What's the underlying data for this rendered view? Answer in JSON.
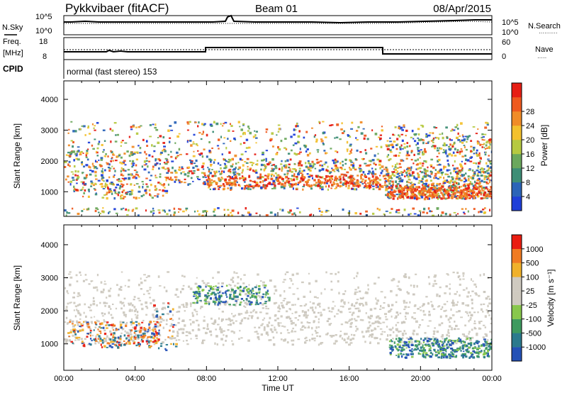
{
  "header": {
    "site": "Pykkvibaer (fitACF)",
    "beam": "Beam 01",
    "date": "08/Apr/2015"
  },
  "status_panels": {
    "nsky_label": "N.Sky",
    "nsky_ticks": [
      "10^5",
      "10^0"
    ],
    "nsearch_label": "N.Search",
    "nsearch_legend": "··········",
    "freq_label_1": "Freq.",
    "freq_label_2": "[MHz]",
    "freq_ticks": [
      "18",
      "8"
    ],
    "nave_label": "Nave",
    "nave_legend": "·····",
    "nave_ticks": [
      "60",
      "0"
    ],
    "cpid_label": "CPID",
    "cpid_text": "normal (fast stereo) 153"
  },
  "colors": {
    "power_scale": [
      "#1f3fd8",
      "#2b64b8",
      "#3e8e76",
      "#6ba85d",
      "#b6c941",
      "#f3c12e",
      "#f08c28",
      "#ee5a1f",
      "#e61e14"
    ],
    "velocity_scale": [
      "#2451b6",
      "#2b7a8d",
      "#3e9a5f",
      "#88c74c",
      "#cfcac0",
      "#cfcac0",
      "#f0b12b",
      "#f07b22",
      "#ea1d11"
    ]
  },
  "chart_data": [
    {
      "type": "heatmap",
      "panel": "power",
      "ylabel": "Slant Range [km]",
      "ylim": [
        200,
        4600
      ],
      "yticks": [
        1000,
        2000,
        3000,
        4000
      ],
      "xlabel": "",
      "xticks": [
        "00:00",
        "04:00",
        "08:00",
        "12:00",
        "16:00",
        "20:00",
        "00:00"
      ],
      "colorbar_label": "Power [dB]",
      "colorbar_ticks": [
        4,
        8,
        12,
        16,
        20,
        24,
        28
      ],
      "colorbar_range": [
        0,
        32
      ]
    },
    {
      "type": "heatmap",
      "panel": "velocity",
      "ylabel": "Slant Range [km]",
      "ylim": [
        200,
        4600
      ],
      "yticks": [
        1000,
        2000,
        3000,
        4000
      ],
      "xlabel": "Time UT",
      "xticks": [
        "00:00",
        "04:00",
        "08:00",
        "12:00",
        "16:00",
        "20:00",
        "00:00"
      ],
      "colorbar_label": "Velocity [m s⁻¹]",
      "colorbar_ticks": [
        "1000",
        "500",
        "100",
        "25",
        "-25",
        "-100",
        "-500",
        "-1000"
      ]
    }
  ]
}
